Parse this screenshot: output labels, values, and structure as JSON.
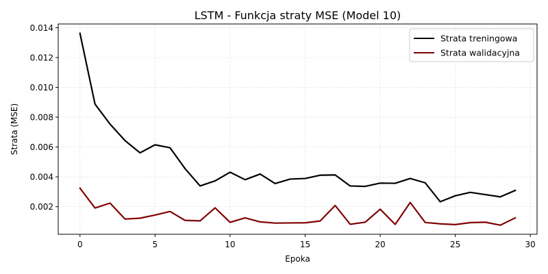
{
  "chart_data": {
    "type": "line",
    "title": "LSTM - Funkcja straty MSE (Model 10)",
    "xlabel": "Epoka",
    "ylabel": "Strata (MSE)",
    "xlim": [
      -1.45,
      30.45
    ],
    "ylim": [
      0.00015,
      0.01425
    ],
    "xticks": [
      0,
      5,
      10,
      15,
      20,
      25,
      30
    ],
    "yticks": [
      0.002,
      0.004,
      0.006,
      0.008,
      0.01,
      0.012,
      0.014
    ],
    "ytick_labels": [
      "0.002",
      "0.004",
      "0.006",
      "0.008",
      "0.010",
      "0.012",
      "0.014"
    ],
    "grid": true,
    "legend_position": "top-right",
    "x": [
      0,
      1,
      2,
      3,
      4,
      5,
      6,
      7,
      8,
      9,
      10,
      11,
      12,
      13,
      14,
      15,
      16,
      17,
      18,
      19,
      20,
      21,
      22,
      23,
      24,
      25,
      26,
      27,
      28,
      29
    ],
    "series": [
      {
        "name": "Strata treningowa",
        "color": "#000000",
        "values": [
          0.01362,
          0.00888,
          0.00754,
          0.00643,
          0.00561,
          0.00615,
          0.00595,
          0.00455,
          0.00339,
          0.00373,
          0.00431,
          0.00381,
          0.00419,
          0.00355,
          0.00385,
          0.00389,
          0.00411,
          0.00413,
          0.00339,
          0.00336,
          0.00358,
          0.00357,
          0.00389,
          0.0036,
          0.00233,
          0.00273,
          0.00296,
          0.00281,
          0.00266,
          0.00309
        ]
      },
      {
        "name": "Strata walidacyjna",
        "color": "#800000",
        "values": [
          0.00324,
          0.00191,
          0.00224,
          0.00117,
          0.00123,
          0.00144,
          0.00168,
          0.00108,
          0.00105,
          0.00192,
          0.00095,
          0.00125,
          0.00098,
          0.0009,
          0.00091,
          0.00092,
          0.00104,
          0.00208,
          0.00082,
          0.00096,
          0.00183,
          0.00081,
          0.00228,
          0.00094,
          0.00085,
          0.0008,
          0.00093,
          0.00096,
          0.00076,
          0.00125
        ]
      }
    ]
  }
}
